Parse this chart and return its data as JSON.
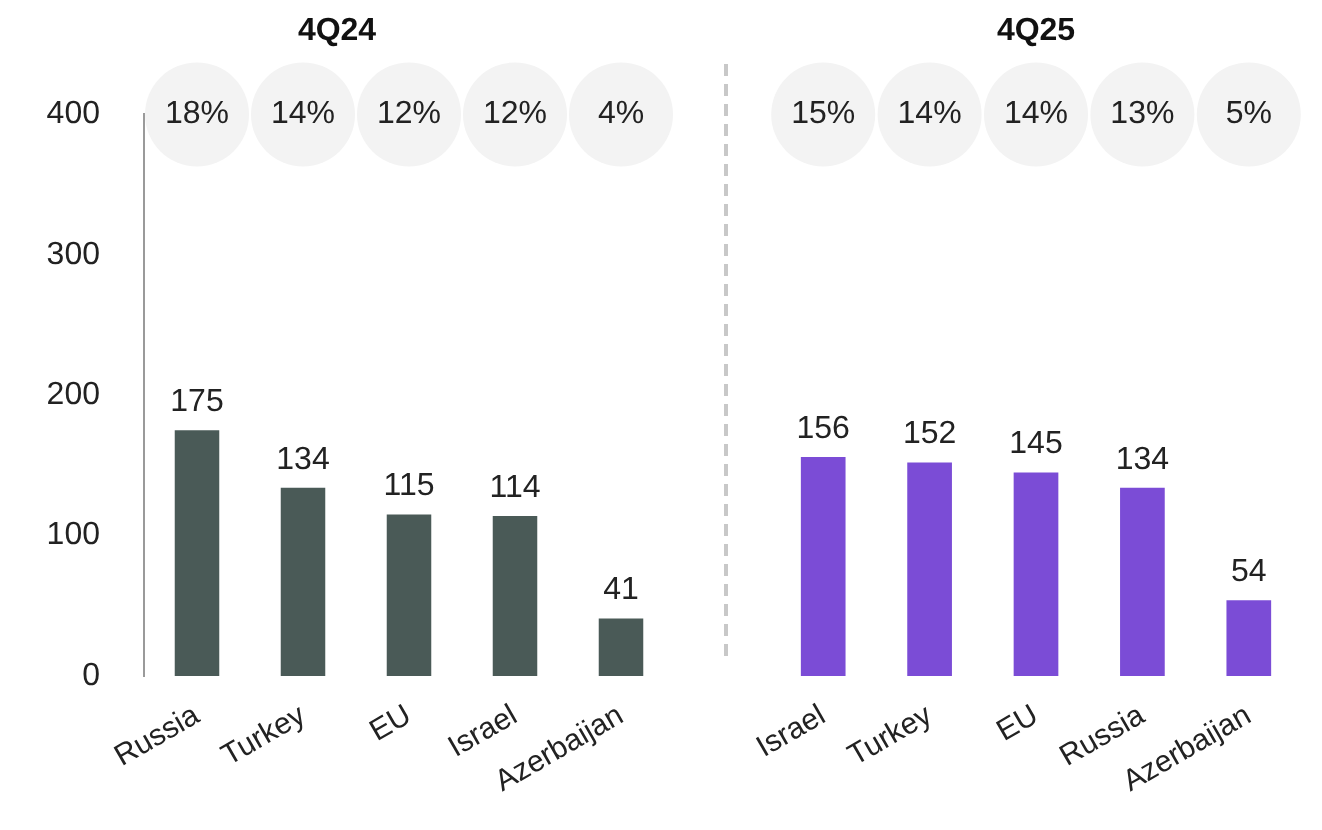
{
  "chart_data": [
    {
      "type": "bar",
      "title": "4Q24",
      "categories": [
        "Russia",
        "Turkey",
        "EU",
        "Israel",
        "Azerbaijan"
      ],
      "values": [
        175,
        134,
        115,
        114,
        41
      ],
      "color": "#4a5a57",
      "ylim": [
        0,
        400
      ],
      "yticks": [
        0,
        100,
        200,
        300,
        400
      ],
      "data_labels": true,
      "annotations": [
        "18%",
        "14%",
        "12%",
        "12%",
        "4%"
      ]
    },
    {
      "type": "bar",
      "title": "4Q25",
      "categories": [
        "Israel",
        "Turkey",
        "EU",
        "Russia",
        "Azerbaijan"
      ],
      "values": [
        156,
        152,
        145,
        134,
        54
      ],
      "color": "#7b4cd6",
      "ylim": [
        0,
        400
      ],
      "yticks": [
        0,
        100,
        200,
        300,
        400
      ],
      "data_labels": true,
      "tick_labels": "x",
      "annotations": [
        "15%",
        "14%",
        "14%",
        "13%",
        "5%"
      ]
    }
  ]
}
